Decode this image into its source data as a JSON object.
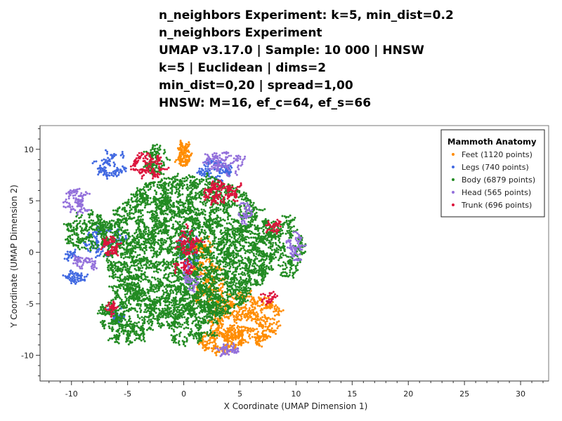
{
  "chart_data": {
    "type": "scatter",
    "title_lines": [
      "n_neighbors Experiment: k=5, min_dist=0.2",
      "n_neighbors Experiment",
      "UMAP v3.17.0 | Sample: 10 000 | HNSW",
      "k=5 | Euclidean | dims=2",
      "min_dist=0,20 | spread=1,00",
      "HNSW: M=16, ef_c=64, ef_s=66"
    ],
    "xlabel": "X Coordinate (UMAP Dimension 1)",
    "ylabel": "Y Coordinate (UMAP Dimension 2)",
    "xlim": [
      -12.8,
      32.5
    ],
    "ylim": [
      -12.5,
      12.3
    ],
    "x_ticks": [
      -10,
      -5,
      0,
      5,
      10,
      15,
      20,
      25,
      30
    ],
    "y_ticks": [
      -10,
      -5,
      0,
      5,
      10
    ],
    "x_tick_labels": [
      "-10",
      "-5",
      "0",
      "5",
      "10",
      "15",
      "20",
      "25",
      "30"
    ],
    "y_tick_labels": [
      "-10",
      "-5",
      "0",
      "5",
      "10"
    ],
    "grid": false,
    "legend": {
      "title": "Mammoth Anatomy",
      "placement": "top-right"
    },
    "series": [
      {
        "name": "Feet (1120 points)",
        "color": "#ff8c00",
        "clusters": [
          {
            "cx": 5.5,
            "cy": -6.5,
            "rx": 3.2,
            "ry": 2.6,
            "n": 180
          },
          {
            "cx": 3.5,
            "cy": -8.5,
            "rx": 2.0,
            "ry": 1.2,
            "n": 70
          },
          {
            "cx": 0.0,
            "cy": 9.5,
            "rx": 0.6,
            "ry": 1.2,
            "n": 40
          },
          {
            "cx": 2.0,
            "cy": -3.0,
            "rx": 1.6,
            "ry": 2.4,
            "n": 70
          },
          {
            "cx": 1.5,
            "cy": 0.5,
            "rx": 1.0,
            "ry": 1.0,
            "n": 30
          }
        ]
      },
      {
        "name": "Legs (740 points)",
        "color": "#4169e1",
        "clusters": [
          {
            "cx": -6.5,
            "cy": 8.5,
            "rx": 1.4,
            "ry": 1.2,
            "n": 35
          },
          {
            "cx": 2.8,
            "cy": 8.0,
            "rx": 1.5,
            "ry": 1.0,
            "n": 40
          },
          {
            "cx": -7.0,
            "cy": 1.0,
            "rx": 1.8,
            "ry": 1.5,
            "n": 45
          },
          {
            "cx": -9.5,
            "cy": -2.5,
            "rx": 1.0,
            "ry": 0.5,
            "n": 20
          },
          {
            "cx": 0.5,
            "cy": 0.5,
            "rx": 1.0,
            "ry": 1.8,
            "n": 40
          },
          {
            "cx": -6.0,
            "cy": -6.0,
            "rx": 0.6,
            "ry": 0.8,
            "n": 20
          },
          {
            "cx": -10.0,
            "cy": -0.5,
            "rx": 0.4,
            "ry": 0.5,
            "n": 10
          }
        ]
      },
      {
        "name": "Body (6879 points)",
        "color": "#228b22",
        "clusters": [
          {
            "cx": 0.5,
            "cy": 0.5,
            "rx": 7.5,
            "ry": 7.0,
            "n": 1400
          },
          {
            "cx": -5.0,
            "cy": -6.0,
            "rx": 2.5,
            "ry": 3.0,
            "n": 160
          },
          {
            "cx": -8.5,
            "cy": 2.0,
            "rx": 2.0,
            "ry": 1.8,
            "n": 90
          },
          {
            "cx": 9.0,
            "cy": 0.5,
            "rx": 1.6,
            "ry": 3.0,
            "n": 90
          },
          {
            "cx": -2.5,
            "cy": 9.0,
            "rx": 1.0,
            "ry": 1.5,
            "n": 40
          },
          {
            "cx": 0.5,
            "cy": -6.0,
            "rx": 3.0,
            "ry": 3.0,
            "n": 150
          }
        ]
      },
      {
        "name": "Head (565 points)",
        "color": "#9370db",
        "clusters": [
          {
            "cx": 3.5,
            "cy": 8.8,
            "rx": 2.0,
            "ry": 1.2,
            "n": 40
          },
          {
            "cx": -9.5,
            "cy": 5.0,
            "rx": 1.5,
            "ry": 1.2,
            "n": 35
          },
          {
            "cx": -9.0,
            "cy": -1.0,
            "rx": 1.2,
            "ry": 0.6,
            "n": 20
          },
          {
            "cx": 10.0,
            "cy": 0.5,
            "rx": 0.6,
            "ry": 1.5,
            "n": 25
          },
          {
            "cx": 4.0,
            "cy": -9.5,
            "rx": 1.0,
            "ry": 0.4,
            "n": 20
          },
          {
            "cx": 0.5,
            "cy": -2.5,
            "rx": 0.8,
            "ry": 1.2,
            "n": 20
          },
          {
            "cx": 5.5,
            "cy": 4.0,
            "rx": 0.6,
            "ry": 1.0,
            "n": 15
          }
        ]
      },
      {
        "name": "Trunk (696 points)",
        "color": "#dc143c",
        "clusters": [
          {
            "cx": -3.0,
            "cy": 8.5,
            "rx": 1.5,
            "ry": 1.2,
            "n": 45
          },
          {
            "cx": 3.5,
            "cy": 6.0,
            "rx": 1.6,
            "ry": 1.4,
            "n": 55
          },
          {
            "cx": -6.5,
            "cy": 0.5,
            "rx": 0.8,
            "ry": 1.0,
            "n": 25
          },
          {
            "cx": 0.5,
            "cy": 1.0,
            "rx": 1.0,
            "ry": 1.5,
            "n": 30
          },
          {
            "cx": -6.5,
            "cy": -5.5,
            "rx": 0.5,
            "ry": 0.6,
            "n": 12
          },
          {
            "cx": 8.0,
            "cy": 2.5,
            "rx": 0.6,
            "ry": 0.6,
            "n": 12
          },
          {
            "cx": 7.5,
            "cy": -4.5,
            "rx": 0.6,
            "ry": 0.6,
            "n": 10
          },
          {
            "cx": 0.0,
            "cy": -1.5,
            "rx": 1.0,
            "ry": 0.6,
            "n": 15
          }
        ]
      }
    ]
  }
}
